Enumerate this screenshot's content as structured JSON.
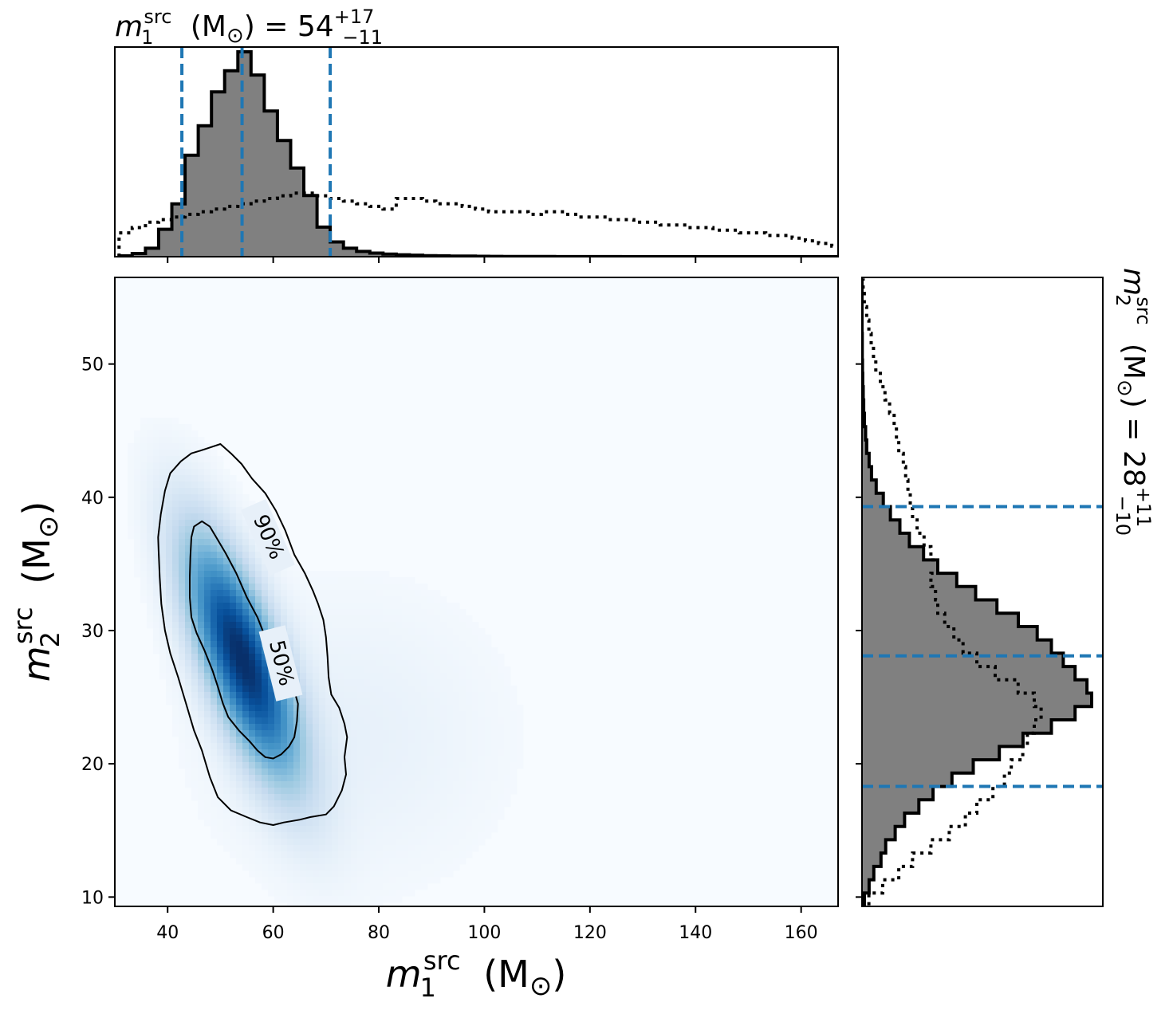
{
  "chart_data": [
    {
      "type": "heatmap",
      "panel": "joint",
      "xlabel": {
        "var": "m",
        "sub": "1",
        "sup": "src",
        "unit": "(M",
        "unit_sub": "⊙",
        "unit_close": ")"
      },
      "ylabel": {
        "var": "m",
        "sub": "2",
        "sup": "src",
        "unit": "(M",
        "unit_sub": "⊙",
        "unit_close": ")"
      },
      "xlim": [
        30,
        167
      ],
      "ylim": [
        9.3,
        56.5
      ],
      "xticks": [
        40,
        60,
        80,
        100,
        120,
        140,
        160
      ],
      "yticks": [
        10,
        20,
        30,
        40,
        50
      ],
      "colormap": "Blues",
      "density_peak": {
        "m1": 54,
        "m2": 28
      },
      "contours": [
        {
          "label": "90%",
          "points": [
            [
              46.2,
              43.5
            ],
            [
              48.5,
              43.8
            ],
            [
              50.0,
              44.0
            ],
            [
              52.0,
              43.3
            ],
            [
              54.0,
              42.5
            ],
            [
              56.0,
              41.4
            ],
            [
              58.5,
              40.3
            ],
            [
              60.5,
              39.0
            ],
            [
              62.3,
              37.5
            ],
            [
              64.0,
              35.7
            ],
            [
              66.0,
              34.3
            ],
            [
              67.5,
              33.0
            ],
            [
              68.5,
              32.0
            ],
            [
              69.5,
              30.8
            ],
            [
              70.0,
              29.5
            ],
            [
              70.3,
              28.0
            ],
            [
              70.5,
              26.5
            ],
            [
              71.0,
              25.2
            ],
            [
              72.5,
              24.2
            ],
            [
              73.5,
              23.0
            ],
            [
              74.0,
              22.0
            ],
            [
              73.5,
              20.5
            ],
            [
              73.8,
              19.2
            ],
            [
              73.0,
              18.0
            ],
            [
              71.5,
              16.8
            ],
            [
              70.0,
              16.2
            ],
            [
              67.0,
              16.0
            ],
            [
              65.0,
              15.8
            ],
            [
              62.0,
              15.6
            ],
            [
              60.0,
              15.4
            ],
            [
              57.5,
              15.6
            ],
            [
              55.0,
              16.0
            ],
            [
              52.0,
              16.5
            ],
            [
              49.5,
              17.5
            ],
            [
              48.0,
              19.0
            ],
            [
              46.5,
              21.0
            ],
            [
              45.0,
              22.5
            ],
            [
              43.5,
              24.5
            ],
            [
              42.0,
              26.5
            ],
            [
              40.5,
              28.3
            ],
            [
              39.5,
              30.0
            ],
            [
              38.8,
              32.0
            ],
            [
              38.5,
              34.0
            ],
            [
              38.3,
              36.0
            ],
            [
              38.2,
              37.0
            ],
            [
              38.7,
              38.7
            ],
            [
              39.5,
              40.5
            ],
            [
              40.5,
              41.8
            ],
            [
              42.5,
              42.7
            ],
            [
              44.5,
              43.3
            ],
            [
              46.2,
              43.5
            ]
          ]
        },
        {
          "label": "50%",
          "points": [
            [
              45.0,
              37.8
            ],
            [
              46.5,
              38.2
            ],
            [
              48.0,
              37.8
            ],
            [
              49.5,
              36.8
            ],
            [
              51.0,
              35.8
            ],
            [
              53.0,
              34.3
            ],
            [
              55.0,
              32.5
            ],
            [
              57.0,
              31.0
            ],
            [
              58.5,
              29.5
            ],
            [
              60.0,
              28.3
            ],
            [
              61.5,
              27.3
            ],
            [
              63.0,
              26.3
            ],
            [
              64.0,
              25.5
            ],
            [
              64.7,
              24.5
            ],
            [
              64.5,
              23.2
            ],
            [
              64.0,
              22.0
            ],
            [
              63.0,
              21.3
            ],
            [
              61.5,
              20.7
            ],
            [
              60.0,
              20.4
            ],
            [
              58.5,
              20.5
            ],
            [
              57.0,
              21.0
            ],
            [
              55.5,
              21.7
            ],
            [
              53.5,
              22.5
            ],
            [
              51.5,
              23.5
            ],
            [
              50.5,
              24.5
            ],
            [
              49.5,
              25.8
            ],
            [
              48.5,
              27.0
            ],
            [
              47.0,
              28.5
            ],
            [
              45.5,
              29.8
            ],
            [
              44.5,
              31.0
            ],
            [
              44.2,
              32.5
            ],
            [
              44.2,
              34.0
            ],
            [
              44.3,
              35.5
            ],
            [
              44.5,
              37.0
            ],
            [
              45.0,
              37.8
            ]
          ]
        }
      ]
    },
    {
      "type": "histogram",
      "panel": "marginal-top",
      "title": {
        "var": "m",
        "sub": "1",
        "sup": "src",
        "unit": "(M",
        "unit_sub": "⊙",
        "unit_close": ")",
        "equals": "=",
        "value": "54",
        "upper": "+17",
        "lower": "−11"
      },
      "bin_start": 30.8,
      "bin_width": 2.5,
      "posterior_counts": [
        0.4,
        1.5,
        4,
        13,
        25,
        48,
        62,
        78,
        88,
        97,
        86,
        69,
        55,
        42,
        29,
        14,
        7,
        4,
        2.5,
        1.7,
        1.2,
        0.9,
        0.7,
        0.5,
        0.4,
        0.3,
        0.25,
        0.2,
        0.15,
        0.1,
        0.1,
        0.08,
        0.06,
        0.05,
        0.04,
        0.03,
        0.02,
        0.02,
        0.01,
        0.01,
        0.01,
        0.01,
        0.01,
        0.01,
        0.01,
        0.01,
        0.01,
        0.01,
        0.01,
        0.01,
        0.01,
        0.01,
        0.01,
        0.01,
        0.01
      ],
      "prior_counts": [
        9,
        11,
        13,
        14,
        15,
        16,
        17,
        18,
        19,
        20,
        21,
        22,
        23,
        24,
        24,
        23,
        22,
        21,
        20,
        19,
        18,
        22,
        22,
        21,
        20,
        20,
        19,
        18,
        17,
        17,
        17,
        16,
        17,
        17,
        16,
        15,
        15,
        14,
        14,
        13,
        13,
        12,
        12,
        11,
        11,
        10,
        10,
        9,
        9,
        8,
        8,
        7,
        6,
        5,
        4
      ],
      "quantile_lines": [
        42.7,
        54.1,
        70.8
      ]
    },
    {
      "type": "histogram",
      "panel": "marginal-right",
      "orientation": "horizontal",
      "title": {
        "var": "m",
        "sub": "2",
        "sup": "src",
        "unit": "(M",
        "unit_sub": "⊙",
        "unit_close": ")",
        "equals": "=",
        "value": "28",
        "upper": "+11",
        "lower": "−10"
      },
      "bin_start": 9.3,
      "bin_width": 1.0,
      "posterior_counts": [
        1,
        3,
        5,
        8,
        10,
        14,
        18,
        24,
        30,
        38,
        47,
        58,
        68,
        80,
        90,
        97,
        95,
        90,
        85,
        80,
        74,
        66,
        57,
        48,
        40,
        32,
        26,
        20,
        16,
        12,
        9,
        6,
        4,
        3,
        2,
        1.5,
        1,
        0.7,
        0.5,
        0.3,
        0.2,
        0.1,
        0.1,
        0,
        0,
        0,
        0
      ],
      "prior_counts": [
        3,
        9,
        16,
        22,
        30,
        38,
        45,
        50,
        57,
        62,
        65,
        70,
        72,
        75,
        78,
        75,
        68,
        58,
        50,
        44,
        40,
        36,
        33,
        32,
        30,
        33,
        30,
        27,
        24,
        22,
        21,
        20,
        19,
        18,
        16,
        15,
        14,
        12,
        10,
        8,
        6,
        5,
        4,
        3,
        2,
        1,
        0.5
      ],
      "quantile_lines": [
        18.3,
        28.1,
        39.3
      ]
    }
  ]
}
